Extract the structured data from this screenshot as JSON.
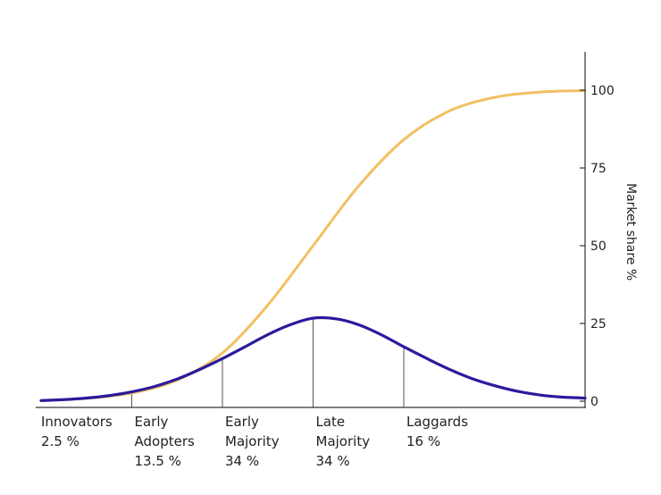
{
  "chart_data": {
    "type": "line",
    "title": "",
    "ylabel": "Market share %",
    "ylim": [
      0,
      100
    ],
    "yticks": [
      "0",
      "25",
      "50",
      "75",
      "100"
    ],
    "y_axis_position": "right",
    "grid": false,
    "legend": "none",
    "series": [
      {
        "key": "adoption",
        "color": "#2a1a9c",
        "points": [
          [
            -3.0,
            0.2
          ],
          [
            -2.75,
            0.5
          ],
          [
            -2.5,
            1.0
          ],
          [
            -2.25,
            1.8
          ],
          [
            -2.0,
            3.0
          ],
          [
            -1.75,
            4.7
          ],
          [
            -1.5,
            7.1
          ],
          [
            -1.25,
            10.2
          ],
          [
            -1.0,
            13.7
          ],
          [
            -0.75,
            17.5
          ],
          [
            -0.5,
            21.4
          ],
          [
            -0.25,
            24.6
          ],
          [
            0.0,
            26.7
          ],
          [
            0.25,
            26.5
          ],
          [
            0.5,
            24.6
          ],
          [
            0.75,
            21.4
          ],
          [
            1.0,
            17.5
          ],
          [
            1.25,
            13.8
          ],
          [
            1.5,
            10.3
          ],
          [
            1.75,
            7.3
          ],
          [
            2.0,
            5.0
          ],
          [
            2.25,
            3.2
          ],
          [
            2.5,
            2.0
          ],
          [
            2.75,
            1.3
          ],
          [
            3.0,
            1.0
          ]
        ]
      },
      {
        "key": "cumulative",
        "color": "#f2c063",
        "points": [
          [
            -3.0,
            0.2
          ],
          [
            -2.5,
            0.9
          ],
          [
            -2.0,
            2.6
          ],
          [
            -1.5,
            6.8
          ],
          [
            -1.0,
            15.5
          ],
          [
            -0.5,
            30.9
          ],
          [
            0.0,
            50.0
          ],
          [
            0.5,
            69.1
          ],
          [
            1.0,
            84.1
          ],
          [
            1.5,
            93.3
          ],
          [
            2.0,
            97.7
          ],
          [
            2.5,
            99.4
          ],
          [
            3.0,
            99.9
          ]
        ]
      }
    ],
    "dividers": [
      {
        "x": -2.0,
        "top": 3.0
      },
      {
        "x": -1.0,
        "top": 13.7
      },
      {
        "x": 0.0,
        "top": 26.7
      },
      {
        "x": 1.0,
        "top": 17.5
      }
    ],
    "categories": [
      {
        "x": -3.0,
        "lines": [
          "Innovators",
          "2.5 %"
        ]
      },
      {
        "x": -2.0,
        "lines": [
          "Early",
          "Adopters",
          "13.5 %"
        ]
      },
      {
        "x": -1.0,
        "lines": [
          "Early",
          "Majority",
          "34 %"
        ]
      },
      {
        "x": 0.0,
        "lines": [
          "Late",
          "Majority",
          "34 %"
        ]
      },
      {
        "x": 1.0,
        "lines": [
          "Laggards",
          "16 %"
        ]
      }
    ]
  }
}
